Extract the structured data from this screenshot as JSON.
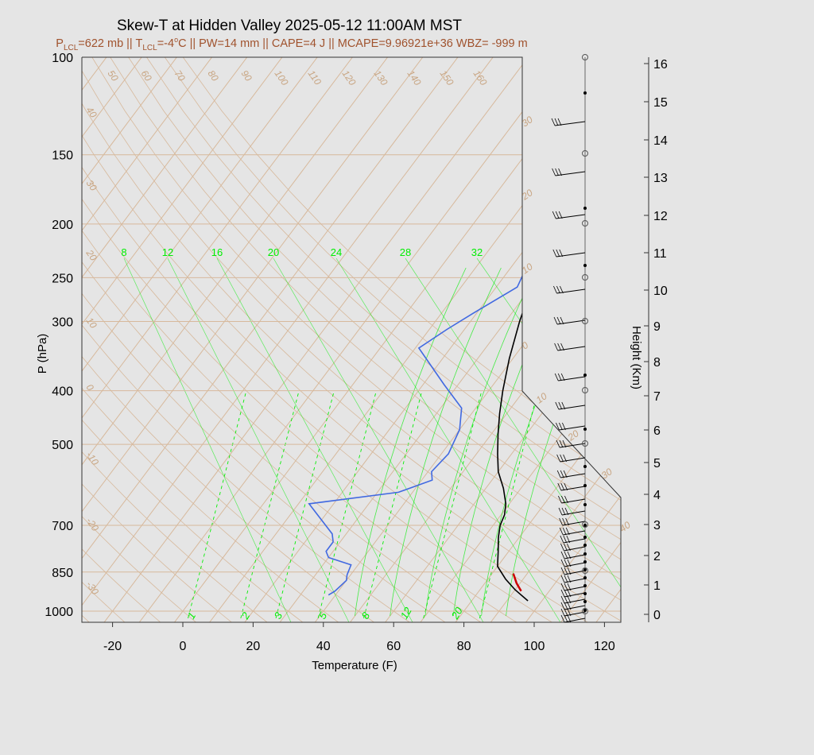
{
  "chart_data": {
    "type": "line",
    "title": "Skew-T at Hidden Valley 2025-05-12 11:00AM MST",
    "subtitle": {
      "p_lcl_label": "P",
      "p_lcl_sub": "LCL",
      "p_lcl_value": "=622 mb || T",
      "t_lcl_sub": "LCL",
      "t_lcl_value": "=-4",
      "degree_symbol": "o",
      "rest": "C || PW=14 mm || CAPE=4 J || MCAPE=9.96921e+36 WBZ= -999 m"
    },
    "xlabel": "Temperature (F)",
    "ylabel": "P (hPa)",
    "y2label": "Height (Km)",
    "x_ticks": [
      "-20",
      "0",
      "20",
      "40",
      "60",
      "80",
      "100",
      "120"
    ],
    "y_ticks": [
      "100",
      "150",
      "200",
      "250",
      "300",
      "400",
      "500",
      "700",
      "850",
      "1000"
    ],
    "height_ticks": [
      "0",
      "1",
      "2",
      "3",
      "4",
      "5",
      "6",
      "7",
      "8",
      "9",
      "10",
      "11",
      "12",
      "13",
      "14",
      "15",
      "16"
    ],
    "isotherm_labels_top": [
      "50",
      "60",
      "70",
      "80",
      "90",
      "100",
      "110",
      "120",
      "130",
      "140",
      "150",
      "160"
    ],
    "isotherm_labels_left": [
      "40",
      "30",
      "20",
      "10",
      "0",
      "-10",
      "-20",
      "-30"
    ],
    "isotherm_labels_right": [
      "30",
      "20",
      "10",
      "0",
      "10",
      "20",
      "30",
      "40"
    ],
    "mixing_ratio_labels_top": [
      "8",
      "12",
      "16",
      "20",
      "24",
      "28",
      "32"
    ],
    "mixing_ratio_labels_bottom": [
      "1",
      "2",
      "3",
      "5",
      "8",
      "12",
      "20"
    ],
    "colors": {
      "temperature": "#000000",
      "dewpoint": "#4169e1",
      "parcel": "#cc0000",
      "isotherm": "#d7b99c",
      "mixing": "#00ee00",
      "background": "#e5e5e5"
    },
    "series": [
      {
        "name": "",
        "role": "temperature",
        "points": [
          [
            96,
            958
          ],
          [
            90,
            915
          ],
          [
            85,
            875
          ],
          [
            80,
            830
          ],
          [
            77,
            780
          ],
          [
            74,
            735
          ],
          [
            72,
            700
          ],
          [
            71,
            670
          ],
          [
            69,
            640
          ],
          [
            65,
            600
          ],
          [
            60,
            560
          ],
          [
            56,
            520
          ],
          [
            52,
            480
          ],
          [
            48,
            440
          ],
          [
            44,
            400
          ],
          [
            39,
            350
          ],
          [
            34,
            300
          ],
          [
            30,
            260
          ],
          [
            26,
            230
          ],
          [
            21,
            200
          ],
          [
            20,
            170
          ],
          [
            21,
            165
          ],
          [
            24,
            150
          ],
          [
            28,
            133
          ],
          [
            33,
            123
          ],
          [
            40,
            113
          ],
          [
            47,
            104
          ],
          [
            53,
            96
          ]
        ]
      },
      {
        "name": "",
        "role": "dewpoint",
        "points": [
          [
            38,
            935
          ],
          [
            39,
            920
          ],
          [
            40,
            880
          ],
          [
            39,
            860
          ],
          [
            38,
            825
          ],
          [
            30,
            800
          ],
          [
            28,
            780
          ],
          [
            28,
            750
          ],
          [
            26,
            725
          ],
          [
            13,
            640
          ],
          [
            36,
            610
          ],
          [
            43,
            580
          ],
          [
            41,
            560
          ],
          [
            42,
            520
          ],
          [
            40,
            470
          ],
          [
            36,
            430
          ],
          [
            26,
            390
          ],
          [
            11,
            335
          ],
          [
            15,
            310
          ],
          [
            19,
            290
          ],
          [
            26,
            260
          ],
          [
            24,
            235
          ],
          [
            20,
            210
          ],
          [
            16,
            185
          ],
          [
            11,
            165
          ],
          [
            7,
            133
          ],
          [
            17,
            117
          ],
          [
            31,
            100
          ]
        ]
      },
      {
        "name": "",
        "role": "parcel",
        "points": [
          [
            92,
            920
          ],
          [
            89,
            890
          ],
          [
            86,
            855
          ]
        ]
      }
    ]
  }
}
